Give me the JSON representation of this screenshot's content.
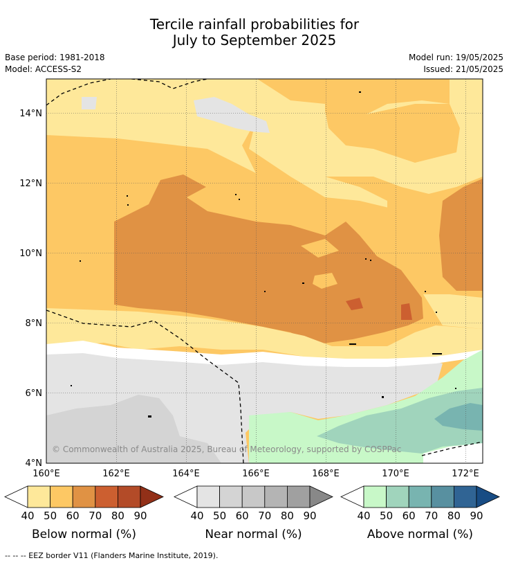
{
  "title_line1": "Tercile rainfall probabilities for",
  "title_line2": "July to September 2025",
  "meta": {
    "base_period": "Base period: 1981-2018",
    "model": "Model: ACCESS-S2",
    "model_run": "Model run: 19/05/2025",
    "issued": "Issued: 21/05/2025"
  },
  "copyright": "© Commonwealth of Australia 2025, Bureau of Meteorology, supported by COSPPac",
  "footnote": "--  --  -- EEZ border V11 (Flanders Marine Institute, 2019).",
  "chart_data": {
    "type": "heatmap",
    "xlim": [
      160,
      172.5
    ],
    "ylim": [
      4,
      15
    ],
    "x_ticks": [
      "160°E",
      "162°E",
      "164°E",
      "166°E",
      "168°E",
      "170°E",
      "172°E"
    ],
    "y_ticks": [
      "4°N",
      "6°N",
      "8°N",
      "10°N",
      "12°N",
      "14°N"
    ],
    "grid": true,
    "legend_bins": [
      40,
      50,
      60,
      70,
      80,
      90
    ],
    "legends": [
      {
        "label": "Below normal (%)",
        "colors": [
          "#fee89a",
          "#fdc864",
          "#e09244",
          "#cc5f30",
          "#b34b28",
          "#923018"
        ]
      },
      {
        "label": "Near normal (%)",
        "colors": [
          "#e4e4e4",
          "#d4d4d4",
          "#c8c8c8",
          "#b4b4b4",
          "#a0a0a0",
          "#888888"
        ]
      },
      {
        "label": "Above normal (%)",
        "colors": [
          "#c8f8c8",
          "#a0d4bc",
          "#78b4b0",
          "#5890a0",
          "#306494",
          "#184c84"
        ]
      }
    ]
  }
}
